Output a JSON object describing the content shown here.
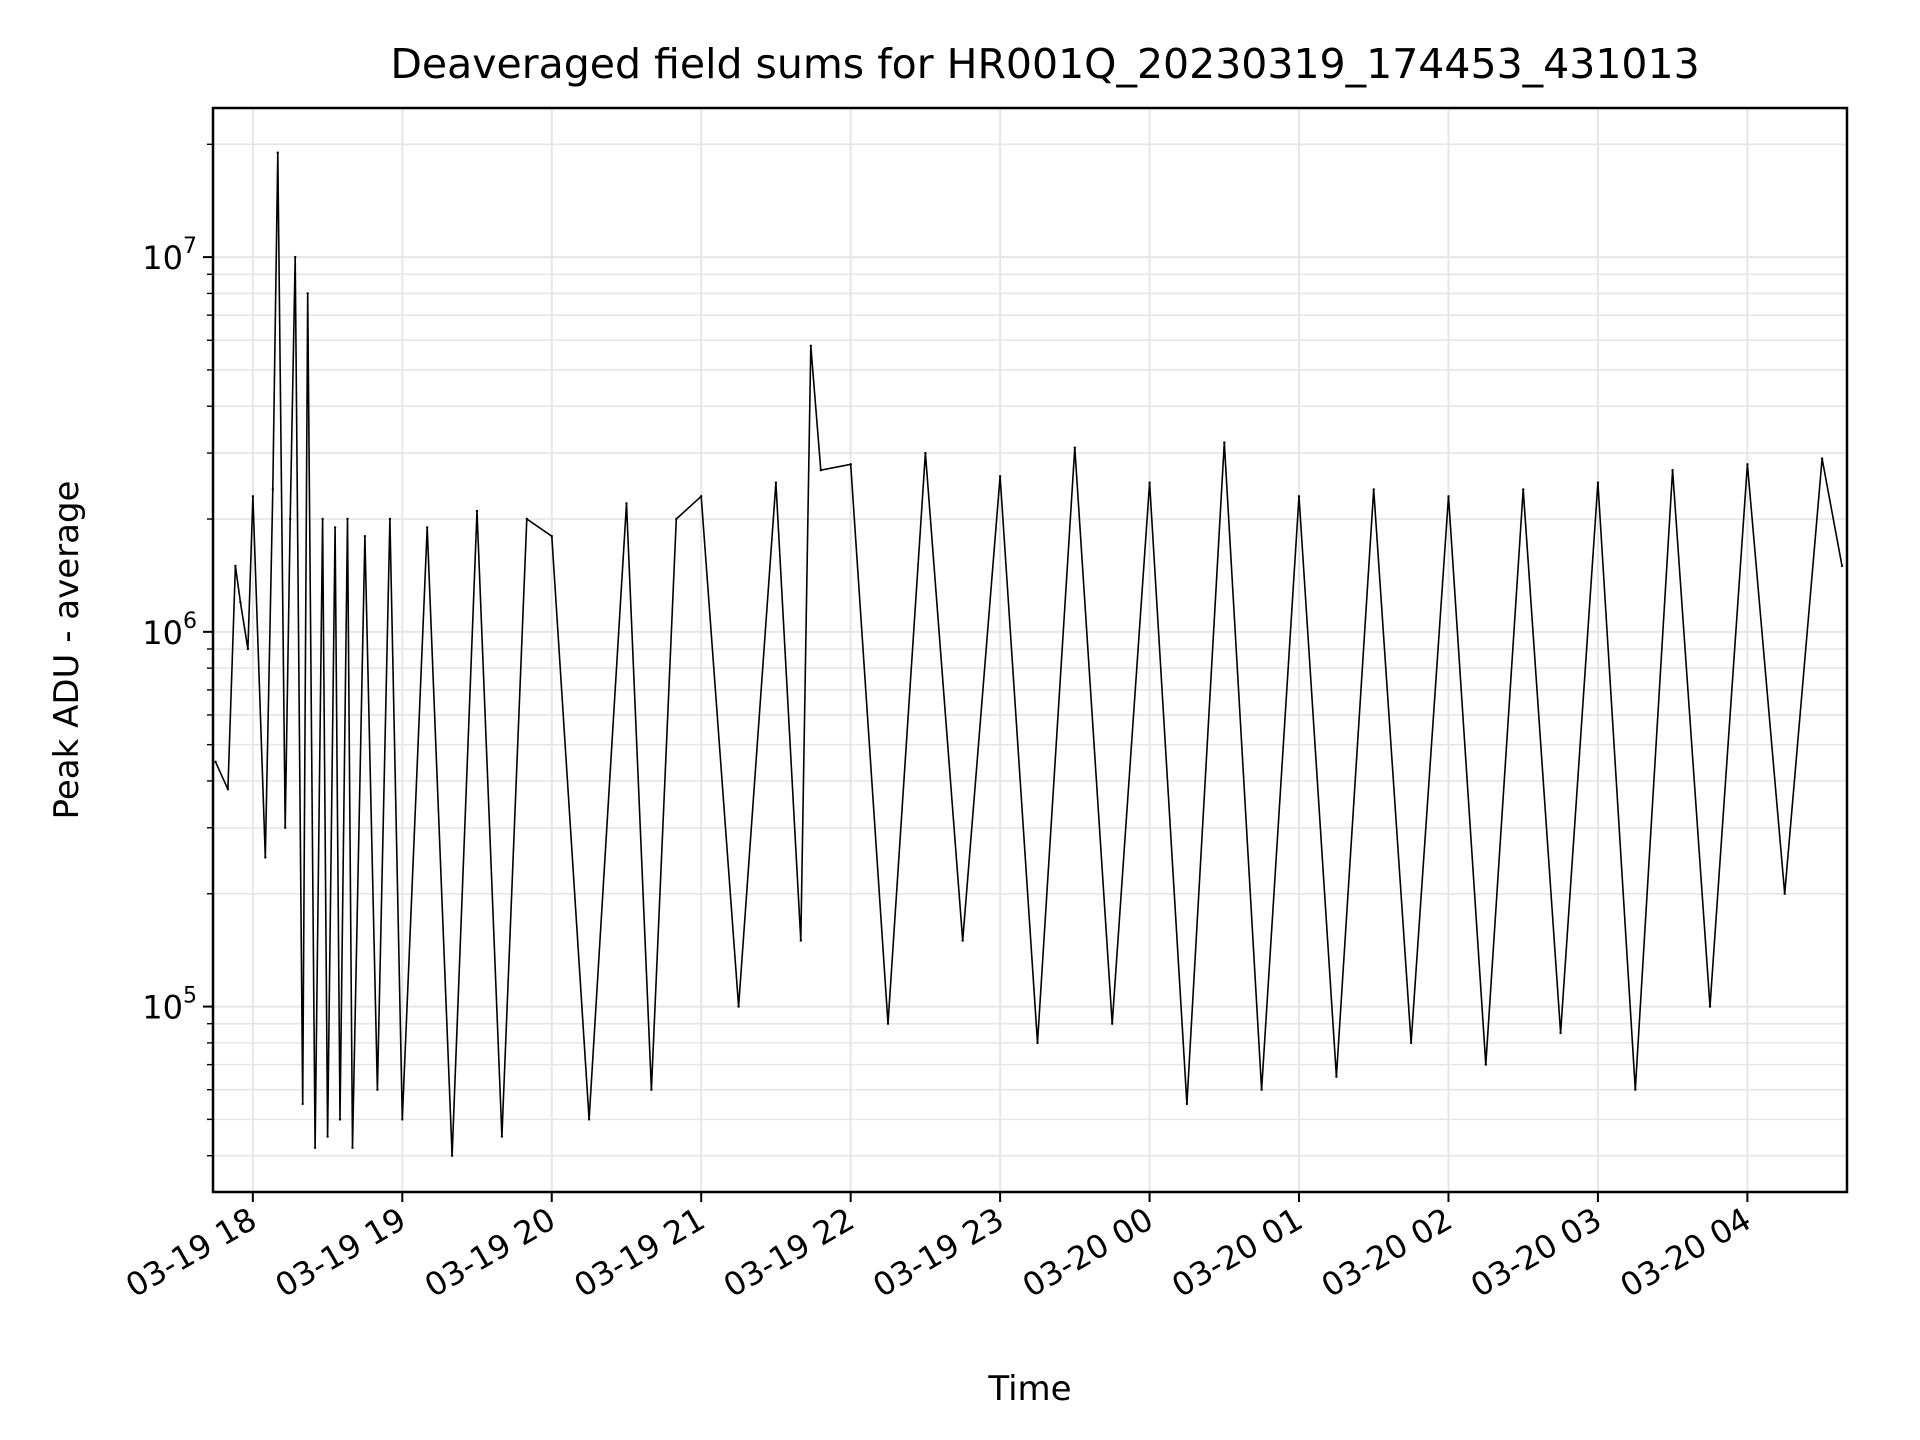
{
  "chart_data": {
    "type": "line",
    "title": "Deaveraged field sums for HR001Q_20230319_174453_431013",
    "xlabel": "Time",
    "ylabel": "Peak ADU - average",
    "yscale": "log",
    "ylim": [
      32000,
      25000000
    ],
    "xlim": [
      "2023-03-19 17:44",
      "2023-03-20 04:40"
    ],
    "grid": true,
    "line_color": "#000000",
    "grid_color": "#e6e6e6",
    "x_ticks": [
      {
        "t": "2023-03-19 18:00",
        "label": "03-19 18"
      },
      {
        "t": "2023-03-19 19:00",
        "label": "03-19 19"
      },
      {
        "t": "2023-03-19 20:00",
        "label": "03-19 20"
      },
      {
        "t": "2023-03-19 21:00",
        "label": "03-19 21"
      },
      {
        "t": "2023-03-19 22:00",
        "label": "03-19 22"
      },
      {
        "t": "2023-03-19 23:00",
        "label": "03-19 23"
      },
      {
        "t": "2023-03-20 00:00",
        "label": "03-20 00"
      },
      {
        "t": "2023-03-20 01:00",
        "label": "03-20 01"
      },
      {
        "t": "2023-03-20 02:00",
        "label": "03-20 02"
      },
      {
        "t": "2023-03-20 03:00",
        "label": "03-20 03"
      },
      {
        "t": "2023-03-20 04:00",
        "label": "03-20 04"
      }
    ],
    "y_ticks": [
      {
        "value": 100000,
        "base": "10",
        "exp": "5"
      },
      {
        "value": 1000000,
        "base": "10",
        "exp": "6"
      },
      {
        "value": 10000000,
        "base": "10",
        "exp": "7"
      }
    ],
    "series": [
      {
        "x": [
          "2023-03-19 17:45",
          "2023-03-19 17:50",
          "2023-03-19 17:53",
          "2023-03-19 17:55",
          "2023-03-19 17:58",
          "2023-03-19 18:00",
          "2023-03-19 18:05",
          "2023-03-19 18:08",
          "2023-03-19 18:10",
          "2023-03-19 18:13",
          "2023-03-19 18:15",
          "2023-03-19 18:17",
          "2023-03-19 18:20",
          "2023-03-19 18:22",
          "2023-03-19 18:25",
          "2023-03-19 18:28",
          "2023-03-19 18:30",
          "2023-03-19 18:33",
          "2023-03-19 18:35",
          "2023-03-19 18:38",
          "2023-03-19 18:40",
          "2023-03-19 18:45",
          "2023-03-19 18:50",
          "2023-03-19 18:55",
          "2023-03-19 19:00",
          "2023-03-19 19:10",
          "2023-03-19 19:20",
          "2023-03-19 19:30",
          "2023-03-19 19:40",
          "2023-03-19 19:50",
          "2023-03-19 20:00",
          "2023-03-19 20:15",
          "2023-03-19 20:30",
          "2023-03-19 20:40",
          "2023-03-19 20:50",
          "2023-03-19 21:00",
          "2023-03-19 21:15",
          "2023-03-19 21:30",
          "2023-03-19 21:40",
          "2023-03-19 21:44",
          "2023-03-19 21:48",
          "2023-03-19 22:00",
          "2023-03-19 22:15",
          "2023-03-19 22:30",
          "2023-03-19 22:45",
          "2023-03-19 23:00",
          "2023-03-19 23:15",
          "2023-03-19 23:30",
          "2023-03-19 23:45",
          "2023-03-20 00:00",
          "2023-03-20 00:15",
          "2023-03-20 00:30",
          "2023-03-20 00:45",
          "2023-03-20 01:00",
          "2023-03-20 01:15",
          "2023-03-20 01:30",
          "2023-03-20 01:45",
          "2023-03-20 02:00",
          "2023-03-20 02:15",
          "2023-03-20 02:30",
          "2023-03-20 02:45",
          "2023-03-20 03:00",
          "2023-03-20 03:15",
          "2023-03-20 03:30",
          "2023-03-20 03:45",
          "2023-03-20 04:00",
          "2023-03-20 04:15",
          "2023-03-20 04:30",
          "2023-03-20 04:38"
        ],
        "y": [
          450000,
          380000,
          1500000,
          1200000,
          900000,
          2300000,
          250000,
          2400000,
          19000000,
          300000,
          2000000,
          10000000,
          55000,
          8000000,
          42000,
          2000000,
          45000,
          1900000,
          50000,
          2000000,
          42000,
          1800000,
          60000,
          2000000,
          50000,
          1900000,
          40000,
          2100000,
          45000,
          2000000,
          1800000,
          50000,
          2200000,
          60000,
          2000000,
          2300000,
          100000,
          2500000,
          150000,
          5800000,
          2700000,
          2800000,
          90000,
          3000000,
          150000,
          2600000,
          80000,
          3100000,
          90000,
          2500000,
          55000,
          3200000,
          60000,
          2300000,
          65000,
          2400000,
          80000,
          2300000,
          70000,
          2400000,
          85000,
          2500000,
          60000,
          2700000,
          100000,
          2800000,
          200000,
          2900000,
          1500000
        ]
      }
    ]
  }
}
